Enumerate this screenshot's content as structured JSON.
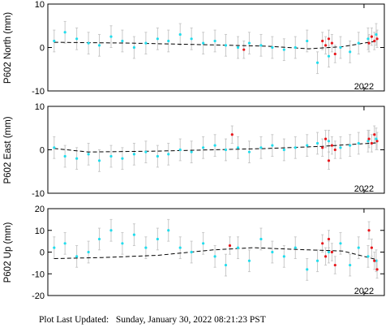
{
  "footer": {
    "label": "Plot Last Updated:",
    "timestamp": "Sunday, January 30, 2022 08:21:23 PST"
  },
  "colors": {
    "data_point": "#22dded",
    "recent_point": "#e8161b",
    "error_bar": "#c9c9c9",
    "trend": "#000000"
  },
  "chart_data": [
    {
      "type": "scatter",
      "ylabel": "P602 North (mm)",
      "ylim": [
        -10,
        10
      ],
      "yticks": [
        -10,
        0,
        10
      ],
      "xtick_label": "2022",
      "xtick_date": "2022-01-01",
      "xlim": [
        "2020-02-01",
        "2022-02-15"
      ],
      "trend_line": {
        "style": "dashed",
        "points": [
          [
            "2020-02-15",
            1.2
          ],
          [
            "2020-08-01",
            1.0
          ],
          [
            "2021-02-01",
            0.6
          ],
          [
            "2021-06-01",
            0.3
          ],
          [
            "2021-09-01",
            -0.3
          ],
          [
            "2021-11-15",
            0.2
          ],
          [
            "2022-01-30",
            1.5
          ]
        ]
      },
      "series": [
        {
          "role": "daily position",
          "color": "#22dded",
          "error_mm": 2.5,
          "x": [
            "2020-02-15",
            "2020-03-10",
            "2020-04-05",
            "2020-05-01",
            "2020-05-25",
            "2020-06-20",
            "2020-07-15",
            "2020-08-10",
            "2020-09-05",
            "2020-10-01",
            "2020-10-25",
            "2020-11-20",
            "2020-12-15",
            "2021-01-10",
            "2021-02-05",
            "2021-03-01",
            "2021-03-28",
            "2021-04-22",
            "2021-05-18",
            "2021-06-12",
            "2021-07-08",
            "2021-08-02",
            "2021-08-28",
            "2021-09-20",
            "2021-10-15",
            "2021-11-10",
            "2021-12-01",
            "2021-12-20",
            "2022-01-10",
            "2022-01-28"
          ],
          "y": [
            1.5,
            3.5,
            2.0,
            1.0,
            0.5,
            2.5,
            1.5,
            0.0,
            1.0,
            2.0,
            1.5,
            3.0,
            2.0,
            1.0,
            1.5,
            0.5,
            0.0,
            1.0,
            0.5,
            0.0,
            -0.5,
            0.0,
            1.5,
            -3.5,
            -2.0,
            0.0,
            -1.0,
            1.0,
            2.0,
            3.0
          ]
        },
        {
          "role": "recent position",
          "color": "#e8161b",
          "error_mm": 2.0,
          "x": [
            "2021-04-10",
            "2021-10-01",
            "2021-10-08",
            "2021-10-15",
            "2021-10-22",
            "2021-10-29",
            "2022-01-12",
            "2022-01-18",
            "2022-01-24",
            "2022-01-30"
          ],
          "y": [
            -0.5,
            1.5,
            0.5,
            2.0,
            1.0,
            -1.5,
            1.0,
            2.5,
            1.5,
            2.0
          ]
        }
      ]
    },
    {
      "type": "scatter",
      "ylabel": "P602 East (mm)",
      "ylim": [
        -10,
        10
      ],
      "yticks": [
        -10,
        0,
        10
      ],
      "xtick_label": "2022",
      "xtick_date": "2022-01-01",
      "xlim": [
        "2020-02-01",
        "2022-02-15"
      ],
      "trend_line": {
        "style": "dashed",
        "points": [
          [
            "2020-02-15",
            0.3
          ],
          [
            "2020-05-01",
            -0.5
          ],
          [
            "2020-10-01",
            -0.3
          ],
          [
            "2021-02-01",
            0.0
          ],
          [
            "2021-06-01",
            0.3
          ],
          [
            "2021-10-01",
            0.8
          ],
          [
            "2022-01-30",
            1.6
          ]
        ]
      },
      "series": [
        {
          "role": "daily position",
          "color": "#22dded",
          "error_mm": 2.5,
          "x": [
            "2020-02-15",
            "2020-03-10",
            "2020-04-05",
            "2020-05-01",
            "2020-05-25",
            "2020-06-20",
            "2020-07-15",
            "2020-08-10",
            "2020-09-05",
            "2020-10-01",
            "2020-10-25",
            "2020-11-20",
            "2020-12-15",
            "2021-01-10",
            "2021-02-05",
            "2021-03-01",
            "2021-03-28",
            "2021-04-22",
            "2021-05-18",
            "2021-06-12",
            "2021-07-08",
            "2021-08-02",
            "2021-08-28",
            "2021-09-20",
            "2021-10-15",
            "2021-11-10",
            "2021-12-01",
            "2021-12-20",
            "2022-01-10",
            "2022-01-28"
          ],
          "y": [
            0.5,
            -1.5,
            -2.0,
            -1.0,
            -2.5,
            -1.5,
            -2.0,
            -1.0,
            -0.5,
            -1.5,
            -1.0,
            0.0,
            -0.5,
            0.5,
            1.0,
            0.0,
            0.5,
            -0.5,
            0.5,
            1.0,
            0.0,
            0.5,
            1.0,
            1.5,
            2.0,
            0.5,
            1.0,
            1.5,
            2.0,
            2.5
          ]
        },
        {
          "role": "recent position",
          "color": "#e8161b",
          "error_mm": 2.0,
          "x": [
            "2021-03-15",
            "2021-10-01",
            "2021-10-08",
            "2021-10-15",
            "2021-10-22",
            "2021-10-29",
            "2022-01-12",
            "2022-01-18",
            "2022-01-24",
            "2022-01-30"
          ],
          "y": [
            3.5,
            0.5,
            2.5,
            -2.5,
            1.0,
            0.0,
            2.5,
            1.5,
            3.5,
            2.0
          ]
        }
      ]
    },
    {
      "type": "scatter",
      "ylabel": "P602 Up (mm)",
      "ylim": [
        -20,
        20
      ],
      "yticks": [
        -20,
        -10,
        0,
        10,
        20
      ],
      "xtick_label": "2022",
      "xtick_date": "2022-01-01",
      "xlim": [
        "2020-02-01",
        "2022-02-15"
      ],
      "trend_line": {
        "style": "dashed",
        "points": [
          [
            "2020-02-15",
            -3.0
          ],
          [
            "2020-06-01",
            -2.5
          ],
          [
            "2020-10-01",
            -1.5
          ],
          [
            "2021-02-01",
            1.0
          ],
          [
            "2021-05-01",
            2.0
          ],
          [
            "2021-09-01",
            1.0
          ],
          [
            "2021-11-15",
            0.5
          ],
          [
            "2022-01-30",
            -3.5
          ]
        ]
      },
      "series": [
        {
          "role": "daily position",
          "color": "#22dded",
          "error_mm": 5,
          "x": [
            "2020-02-15",
            "2020-03-10",
            "2020-04-05",
            "2020-05-01",
            "2020-05-25",
            "2020-06-20",
            "2020-07-15",
            "2020-08-10",
            "2020-09-05",
            "2020-10-01",
            "2020-10-25",
            "2020-11-20",
            "2020-12-15",
            "2021-01-10",
            "2021-02-05",
            "2021-03-01",
            "2021-03-28",
            "2021-04-22",
            "2021-05-18",
            "2021-06-12",
            "2021-07-08",
            "2021-08-02",
            "2021-08-28",
            "2021-09-20",
            "2021-10-15",
            "2021-11-10",
            "2021-12-01",
            "2021-12-20",
            "2022-01-10",
            "2022-01-28"
          ],
          "y": [
            2.0,
            4.0,
            -2.0,
            0.0,
            6.0,
            10.0,
            4.0,
            8.0,
            2.0,
            6.0,
            10.0,
            2.0,
            0.0,
            4.0,
            -2.0,
            -6.0,
            2.0,
            -4.0,
            6.0,
            0.0,
            -2.0,
            2.0,
            -8.0,
            -4.0,
            0.0,
            4.0,
            -6.0,
            2.0,
            -2.0,
            -4.0
          ]
        },
        {
          "role": "recent position",
          "color": "#e8161b",
          "error_mm": 4,
          "x": [
            "2021-03-10",
            "2021-10-01",
            "2021-10-08",
            "2021-10-15",
            "2021-10-22",
            "2021-10-29",
            "2022-01-12",
            "2022-01-18",
            "2022-01-24",
            "2022-01-30"
          ],
          "y": [
            3.0,
            4.0,
            -2.0,
            6.0,
            0.0,
            -6.0,
            10.0,
            2.0,
            -4.0,
            -8.0
          ]
        }
      ]
    }
  ]
}
